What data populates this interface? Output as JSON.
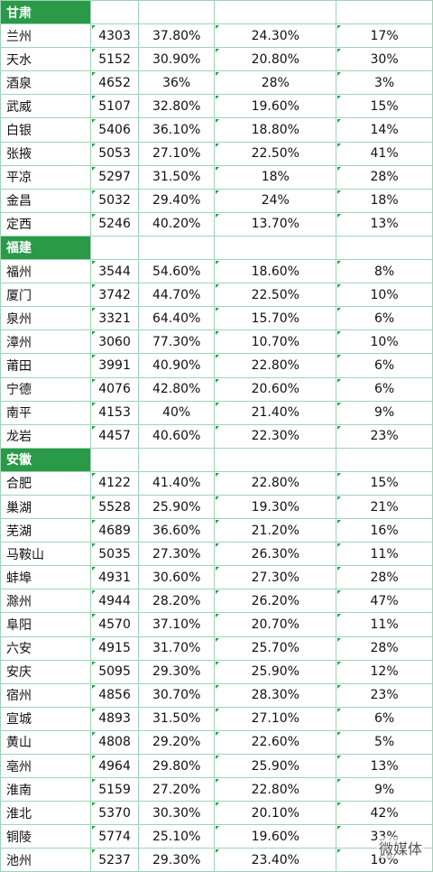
{
  "accent_color": "#2a9a48",
  "groups": [
    {
      "name": "甘肃",
      "rows": [
        [
          "兰州",
          "4303",
          "37.80%",
          "24.30%",
          "17%"
        ],
        [
          "天水",
          "5152",
          "30.90%",
          "20.80%",
          "30%"
        ],
        [
          "酒泉",
          "4652",
          "36%",
          "28%",
          "3%"
        ],
        [
          "武威",
          "5107",
          "32.80%",
          "19.60%",
          "15%"
        ],
        [
          "白银",
          "5406",
          "36.10%",
          "18.80%",
          "14%"
        ],
        [
          "张掖",
          "5053",
          "27.10%",
          "22.50%",
          "41%"
        ],
        [
          "平凉",
          "5297",
          "31.50%",
          "18%",
          "28%"
        ],
        [
          "金昌",
          "5032",
          "29.40%",
          "24%",
          "18%"
        ],
        [
          "定西",
          "5246",
          "40.20%",
          "13.70%",
          "13%"
        ]
      ]
    },
    {
      "name": "福建",
      "rows": [
        [
          "福州",
          "3544",
          "54.60%",
          "18.60%",
          "8%"
        ],
        [
          "厦门",
          "3742",
          "44.70%",
          "22.50%",
          "10%"
        ],
        [
          "泉州",
          "3321",
          "64.40%",
          "15.70%",
          "6%"
        ],
        [
          "漳州",
          "3060",
          "77.30%",
          "10.70%",
          "10%"
        ],
        [
          "莆田",
          "3991",
          "40.90%",
          "22.80%",
          "6%"
        ],
        [
          "宁德",
          "4076",
          "42.80%",
          "20.60%",
          "6%"
        ],
        [
          "南平",
          "4153",
          "40%",
          "21.40%",
          "9%"
        ],
        [
          "龙岩",
          "4457",
          "40.60%",
          "22.30%",
          "23%"
        ]
      ]
    },
    {
      "name": "安徽",
      "rows": [
        [
          "合肥",
          "4122",
          "41.40%",
          "22.80%",
          "15%"
        ],
        [
          "巢湖",
          "5528",
          "25.90%",
          "19.30%",
          "21%"
        ],
        [
          "芜湖",
          "4689",
          "36.60%",
          "21.20%",
          "16%"
        ],
        [
          "马鞍山",
          "5035",
          "27.30%",
          "26.30%",
          "11%"
        ],
        [
          "蚌埠",
          "4931",
          "30.60%",
          "27.30%",
          "28%"
        ],
        [
          "滁州",
          "4944",
          "28.20%",
          "26.20%",
          "47%"
        ],
        [
          "阜阳",
          "4570",
          "37.10%",
          "20.70%",
          "11%"
        ],
        [
          "六安",
          "4915",
          "31.70%",
          "25.70%",
          "28%"
        ],
        [
          "安庆",
          "5095",
          "29.30%",
          "25.90%",
          "12%"
        ],
        [
          "宿州",
          "4856",
          "30.70%",
          "28.30%",
          "23%"
        ],
        [
          "宣城",
          "4893",
          "31.50%",
          "27.10%",
          "6%"
        ],
        [
          "黄山",
          "4808",
          "29.20%",
          "22.60%",
          "5%"
        ],
        [
          "亳州",
          "4964",
          "29.80%",
          "25.90%",
          "13%"
        ],
        [
          "淮南",
          "5159",
          "27.20%",
          "22.80%",
          "9%"
        ],
        [
          "淮北",
          "5370",
          "30.30%",
          "20.10%",
          "42%"
        ],
        [
          "铜陵",
          "5774",
          "25.10%",
          "19.60%",
          "33%"
        ],
        [
          "池州",
          "5237",
          "29.30%",
          "23.40%",
          "16%"
        ]
      ]
    }
  ],
  "watermark": "微媒体"
}
